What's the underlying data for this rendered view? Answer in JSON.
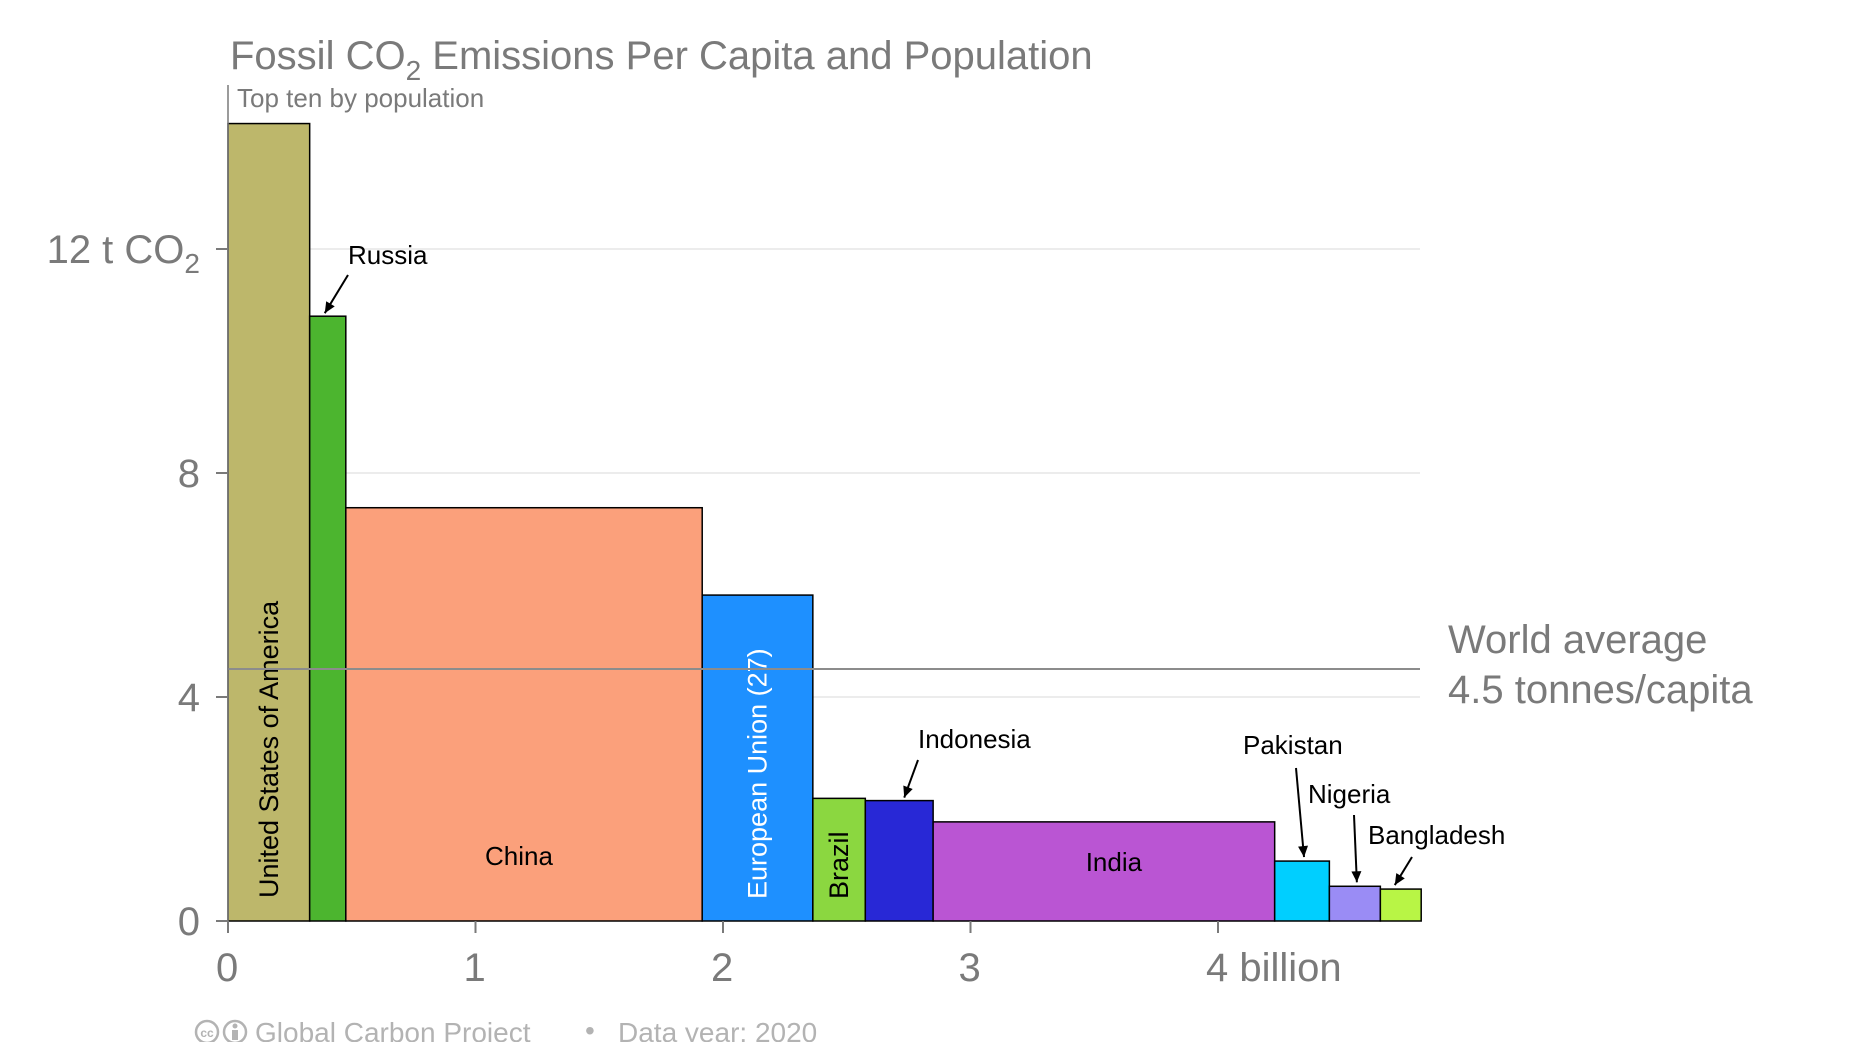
{
  "chart_data": {
    "type": "bar",
    "subtype": "variable-width",
    "title_prefix": "Fossil CO",
    "title_subscript": "2",
    "title_suffix": " Emissions Per Capita and Population",
    "subtitle": "Top ten by population",
    "y_axis": {
      "ticks": [
        {
          "value": 0,
          "label": "0"
        },
        {
          "value": 4,
          "label": "4"
        },
        {
          "value": 8,
          "label": "8"
        },
        {
          "value": 12,
          "label": "12 t CO",
          "subscript": "2"
        }
      ],
      "range": [
        0,
        14.2
      ],
      "grid": true
    },
    "x_axis": {
      "ticks": [
        {
          "value": 0,
          "label": "0"
        },
        {
          "value": 1,
          "label": "1"
        },
        {
          "value": 2,
          "label": "2"
        },
        {
          "value": 3,
          "label": "3"
        },
        {
          "value": 4,
          "label": "4 billion"
        }
      ],
      "range": [
        0,
        4.83
      ]
    },
    "countries": [
      {
        "name": "United States of America",
        "population": 0.33,
        "per_capita": 14.24,
        "color": "#bdb76b",
        "label_mode": "vertical",
        "label_color": "#000000"
      },
      {
        "name": "Russia",
        "population": 0.146,
        "per_capita": 10.8,
        "color": "#4cb52f",
        "label_mode": "arrow",
        "label_color": "#000000"
      },
      {
        "name": "China",
        "population": 1.44,
        "per_capita": 7.38,
        "color": "#fba07b",
        "label_mode": "inside",
        "label_color": "#000000"
      },
      {
        "name": "European Union (27)",
        "population": 0.447,
        "per_capita": 5.82,
        "color": "#1e90ff",
        "label_mode": "vertical",
        "label_color": "#ffffff"
      },
      {
        "name": "Brazil",
        "population": 0.212,
        "per_capita": 2.19,
        "color": "#8bd740",
        "label_mode": "vertical",
        "label_color": "#000000"
      },
      {
        "name": "Indonesia",
        "population": 0.274,
        "per_capita": 2.15,
        "color": "#2828d6",
        "label_mode": "arrow",
        "label_color": "#000000"
      },
      {
        "name": "India",
        "population": 1.38,
        "per_capita": 1.77,
        "color": "#ba55d3",
        "label_mode": "inside",
        "label_color": "#000000"
      },
      {
        "name": "Pakistan",
        "population": 0.221,
        "per_capita": 1.07,
        "color": "#00cfff",
        "label_mode": "arrow",
        "label_color": "#000000"
      },
      {
        "name": "Nigeria",
        "population": 0.206,
        "per_capita": 0.62,
        "color": "#9a8cf5",
        "label_mode": "arrow",
        "label_color": "#000000"
      },
      {
        "name": "Bangladesh",
        "population": 0.165,
        "per_capita": 0.57,
        "color": "#b8f545",
        "label_mode": "arrow",
        "label_color": "#000000"
      }
    ],
    "world_average": {
      "value": 4.5,
      "line1": "World average",
      "line2": "4.5 tonnes/capita",
      "line_color": "#8c8c8c"
    },
    "colors": {
      "text_gray": "#7a7a7a",
      "grid": "#e6e6e6",
      "axis": "#7a7a7a",
      "footer": "#b3b3b3"
    }
  },
  "footer": {
    "source": "Global Carbon Project",
    "separator": "•",
    "data_year": "Data year: 2020",
    "cc_icon": "cc-icon",
    "attribution_icon": "by-attribution-icon"
  }
}
